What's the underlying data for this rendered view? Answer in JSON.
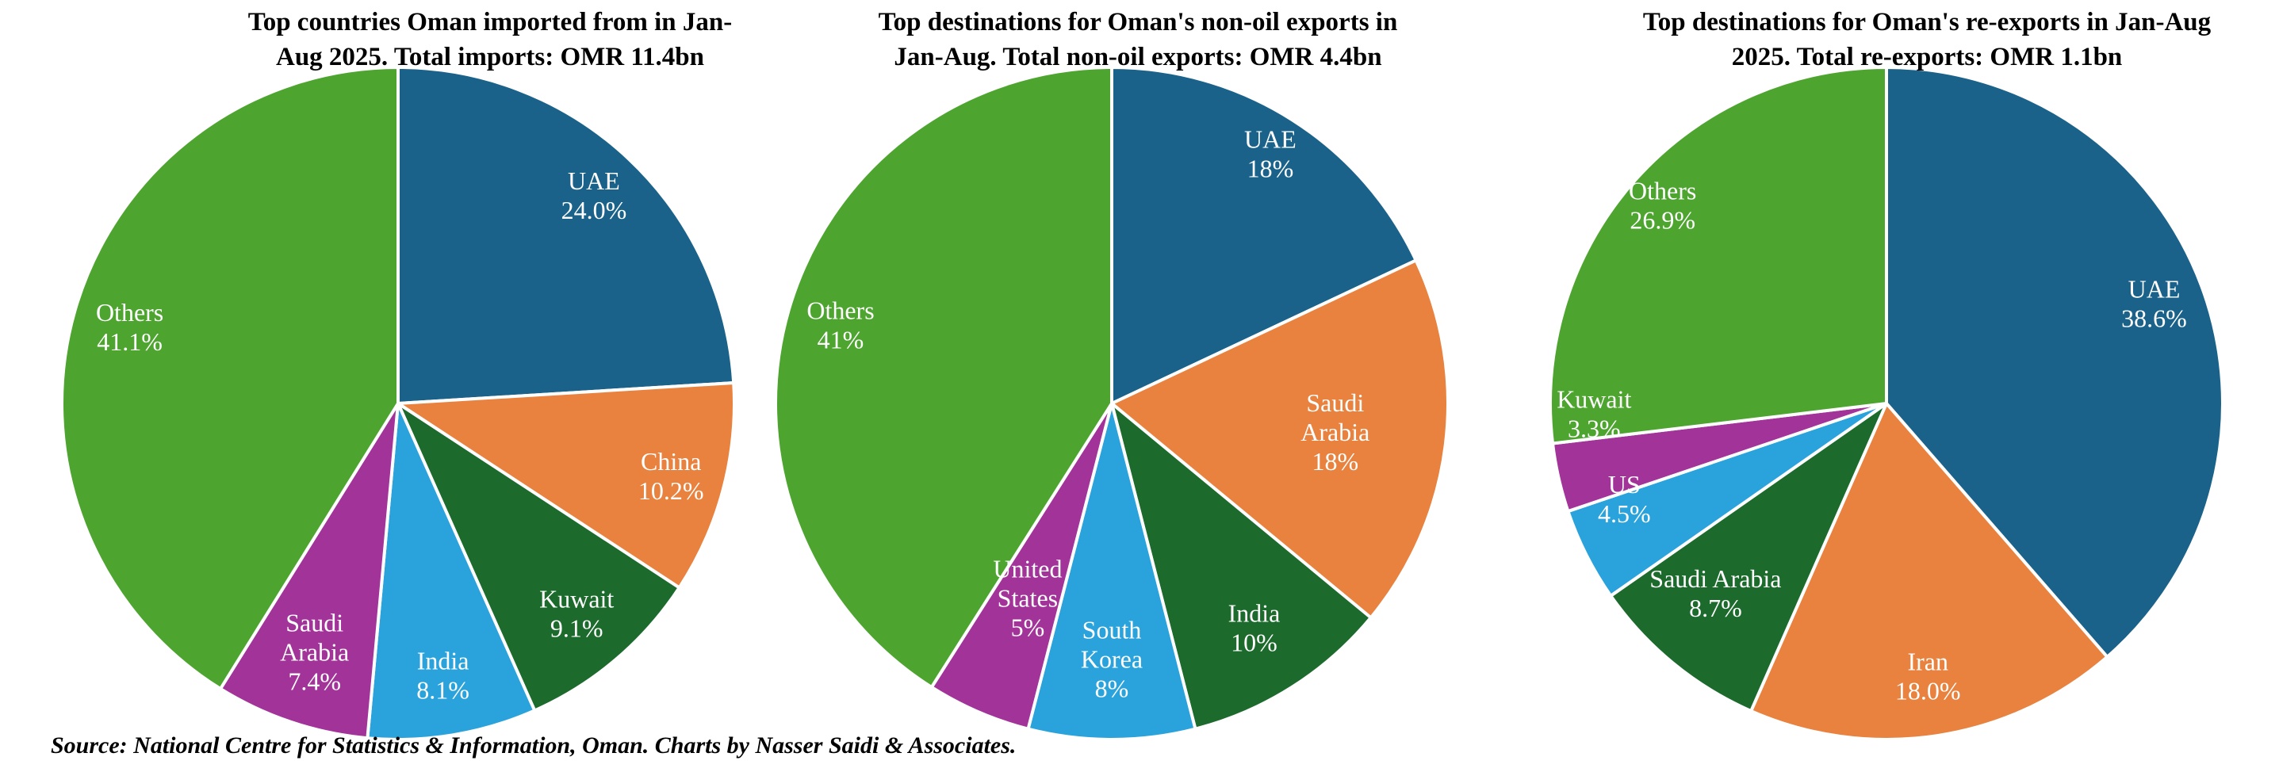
{
  "source_note": "Source: National Centre for Statistics & Information, Oman. Charts by Nasser Saidi & Associates.",
  "palette": {
    "blue": "#1a6289",
    "orange": "#e8823e",
    "dark_green": "#1c6b2d",
    "light_blue": "#2aa3dc",
    "purple": "#a23399",
    "green": "#4da52f",
    "label_text": "#ffffff",
    "title_text": "#000000",
    "slice_edge": "#ffffff"
  },
  "chart_data": [
    {
      "type": "pie",
      "title": "Top countries Oman imported from in Jan-Aug 2025. Total imports: OMR 11.4bn",
      "title_lines": [
        "Top countries Oman imported from in Jan-",
        "Aug 2025. Total imports: OMR 11.4bn"
      ],
      "total": "OMR 11.4bn",
      "start_angle": "top",
      "direction": "clockwise",
      "slices": [
        {
          "label": "UAE",
          "value": 24.0,
          "pct_text": "24.0%",
          "color": "#1a6289",
          "label_lines": [
            "UAE",
            "24.0%"
          ],
          "label_r": 0.85
        },
        {
          "label": "China",
          "value": 10.2,
          "pct_text": "10.2%",
          "color": "#e8823e",
          "label_lines": [
            "China",
            "10.2%"
          ],
          "label_r": 0.84
        },
        {
          "label": "Kuwait",
          "value": 9.1,
          "pct_text": "9.1%",
          "color": "#1c6b2d",
          "label_lines": [
            "Kuwait",
            "9.1%"
          ],
          "label_r": 0.82
        },
        {
          "label": "India",
          "value": 8.1,
          "pct_text": "8.1%",
          "color": "#2aa3dc",
          "label_lines": [
            "India",
            "8.1%"
          ],
          "label_r": 0.82
        },
        {
          "label": "Saudi Arabia",
          "value": 7.4,
          "pct_text": "7.4%",
          "color": "#a23399",
          "label_lines": [
            "Saudi",
            "Arabia",
            "7.4%"
          ],
          "label_r": 0.78
        },
        {
          "label": "Others",
          "value": 41.1,
          "pct_text": "41.1%",
          "color": "#4da52f",
          "label_lines": [
            "Others",
            "41.1%"
          ],
          "label_r": 0.83
        }
      ]
    },
    {
      "type": "pie",
      "title": "Top destinations for Oman's non-oil exports in Jan-Aug. Total non-oil exports: OMR 4.4bn",
      "title_lines": [
        "Top destinations for Oman's non-oil exports in",
        "Jan-Aug. Total non-oil exports: OMR 4.4bn"
      ],
      "total": "OMR 4.4bn",
      "start_angle": "top",
      "direction": "clockwise",
      "slices": [
        {
          "label": "UAE",
          "value": 18,
          "pct_text": "18%",
          "color": "#1a6289",
          "label_lines": [
            "UAE",
            "18%"
          ],
          "label_r": 0.88
        },
        {
          "label": "Saudi Arabia",
          "value": 18,
          "pct_text": "18%",
          "color": "#e8823e",
          "label_lines": [
            "Saudi",
            "Arabia",
            "18%"
          ],
          "label_r": 0.67
        },
        {
          "label": "India",
          "value": 10,
          "pct_text": "10%",
          "color": "#1c6b2d",
          "label_lines": [
            "India",
            "10%"
          ],
          "label_r": 0.79
        },
        {
          "label": "South Korea",
          "value": 8,
          "pct_text": "8%",
          "color": "#2aa3dc",
          "label_lines": [
            "South",
            "Korea",
            "8%"
          ],
          "label_r": 0.76
        },
        {
          "label": "United States",
          "value": 5,
          "pct_text": "5%",
          "color": "#a23399",
          "label_lines": [
            "United",
            "States",
            "5%"
          ],
          "label_r": 0.63
        },
        {
          "label": "Others",
          "value": 41,
          "pct_text": "41%",
          "color": "#4da52f",
          "label_lines": [
            "Others",
            "41%"
          ],
          "label_r": 0.84
        }
      ]
    },
    {
      "type": "pie",
      "title": "Top destinations for Oman's re-exports in Jan-Aug 2025. Total re-exports: OMR 1.1bn",
      "title_lines": [
        "Top destinations for Oman's re-exports in Jan-Aug",
        "2025. Total re-exports: OMR 1.1bn"
      ],
      "total": "OMR 1.1bn",
      "start_angle": "top",
      "direction": "clockwise",
      "slices": [
        {
          "label": "UAE",
          "value": 38.6,
          "pct_text": "38.6%",
          "color": "#1a6289",
          "label_lines": [
            "UAE",
            "38.6%"
          ],
          "label_r": 0.85
        },
        {
          "label": "Iran",
          "value": 18.0,
          "pct_text": "18.0%",
          "color": "#e8823e",
          "label_lines": [
            "Iran",
            "18.0%"
          ],
          "label_r": 0.82
        },
        {
          "label": "Saudi Arabia",
          "value": 8.7,
          "pct_text": "8.7%",
          "color": "#1c6b2d",
          "label_lines": [
            "Saudi Arabia",
            "8.7%"
          ],
          "label_r": 0.76,
          "label_angle": 222
        },
        {
          "label": "US",
          "value": 4.5,
          "pct_text": "4.5%",
          "color": "#2aa3dc",
          "label_lines": [
            "US",
            "4.5%"
          ],
          "label_r": 0.83,
          "label_angle": 250
        },
        {
          "label": "Kuwait",
          "value": 3.3,
          "pct_text": "3.3%",
          "color": "#a23399",
          "label_lines": [
            "Kuwait",
            "3.3%"
          ],
          "label_r": 0.87,
          "label_angle": 268
        },
        {
          "label": "Others",
          "value": 26.9,
          "pct_text": "26.9%",
          "color": "#4da52f",
          "label_lines": [
            "Others",
            "26.9%"
          ],
          "label_r": 0.89
        }
      ]
    }
  ]
}
